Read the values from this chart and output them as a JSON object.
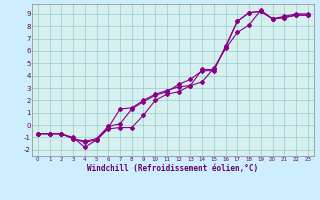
{
  "xlabel": "Windchill (Refroidissement éolien,°C)",
  "xlim": [
    -0.5,
    23.5
  ],
  "ylim": [
    -2.5,
    9.8
  ],
  "xticks": [
    0,
    1,
    2,
    3,
    4,
    5,
    6,
    7,
    8,
    9,
    10,
    11,
    12,
    13,
    14,
    15,
    16,
    17,
    18,
    19,
    20,
    21,
    22,
    23
  ],
  "yticks": [
    -2,
    -1,
    0,
    1,
    2,
    3,
    4,
    5,
    6,
    7,
    8,
    9
  ],
  "bg_color": "#cceeff",
  "plot_bg": "#d6f0f0",
  "line_color": "#880088",
  "grid_major_color": "#99cccc",
  "grid_minor_color": "#bbdddd",
  "line1_x": [
    0,
    1,
    2,
    3,
    4,
    5,
    6,
    7,
    8,
    9,
    10,
    11,
    12,
    13,
    14,
    15,
    16,
    17,
    18,
    19,
    20,
    21,
    22,
    23
  ],
  "line1_y": [
    -0.7,
    -0.7,
    -0.7,
    -1.1,
    -1.4,
    -1.2,
    -0.2,
    1.3,
    1.4,
    2.0,
    2.5,
    2.8,
    3.1,
    3.2,
    3.5,
    4.6,
    6.2,
    7.5,
    8.1,
    9.3,
    8.6,
    8.8,
    9.0,
    9.0
  ],
  "line2_x": [
    0,
    1,
    2,
    3,
    4,
    5,
    6,
    7,
    8,
    9,
    10,
    11,
    12,
    13,
    14,
    15,
    16,
    17,
    18,
    19,
    20,
    21,
    22,
    23
  ],
  "line2_y": [
    -0.7,
    -0.7,
    -0.7,
    -1.0,
    -1.8,
    -1.2,
    -0.3,
    -0.2,
    -0.2,
    0.8,
    2.0,
    2.5,
    2.7,
    3.2,
    4.5,
    4.5,
    6.3,
    8.4,
    9.1,
    9.2,
    8.6,
    8.7,
    8.9,
    8.9
  ],
  "line3_x": [
    0,
    1,
    2,
    3,
    4,
    5,
    6,
    7,
    8,
    9,
    10,
    11,
    12,
    13,
    14,
    15,
    16,
    17,
    18,
    19,
    20,
    21,
    22,
    23
  ],
  "line3_y": [
    -0.7,
    -0.7,
    -0.7,
    -1.1,
    -1.3,
    -1.1,
    -0.1,
    0.1,
    1.3,
    1.9,
    2.4,
    2.7,
    3.3,
    3.7,
    4.4,
    4.4,
    6.4,
    8.4,
    9.1,
    9.2,
    8.6,
    8.7,
    8.9,
    8.9
  ],
  "marker_size": 2.0,
  "line_width": 0.8,
  "tick_fontsize": 5.5,
  "xlabel_fontsize": 5.5
}
